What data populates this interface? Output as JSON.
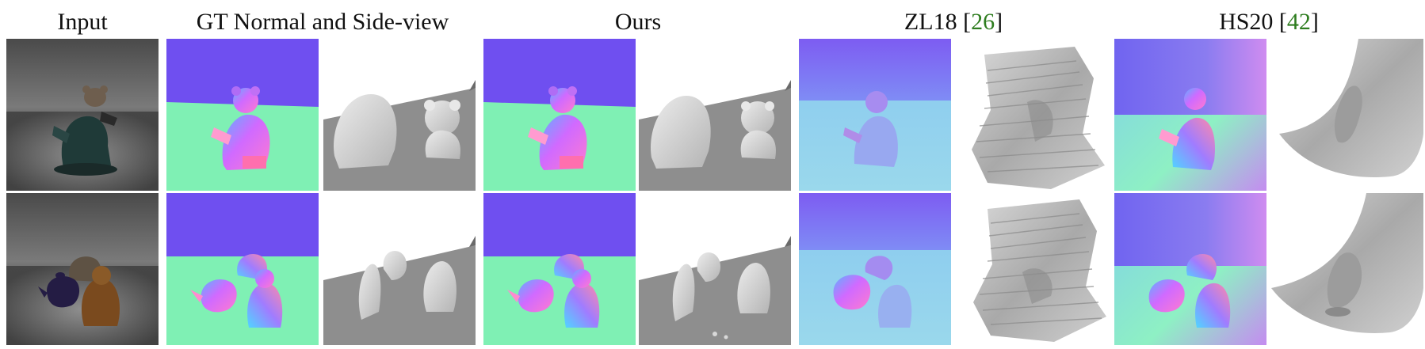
{
  "headers": {
    "input": "Input",
    "gt": "GT Normal and Side-view",
    "ours": "Ours",
    "zl18": {
      "name": "ZL18 ",
      "open": "[",
      "ref": "26",
      "close": "]"
    },
    "hs20": {
      "name": "HS20 ",
      "open": "[",
      "ref": "42",
      "close": "]"
    }
  },
  "colors": {
    "reference_link": "#2e7d1f",
    "normal_wall": "#6f4ff0",
    "normal_floor": "#7ff0b4",
    "side_floor": "#8e8e8e"
  },
  "rows": [
    {
      "scene": "teddy-bear-and-buddha"
    },
    {
      "scene": "teapot-cat-and-buddha"
    }
  ]
}
